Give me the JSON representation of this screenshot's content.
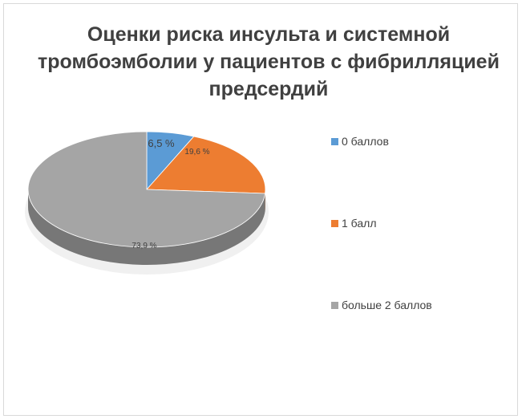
{
  "chart_data": {
    "type": "pie",
    "style": "3d",
    "title": "Оценки риска инсульта и системной тромбоэмболии у пациентов с фибрилляцией предсердий",
    "slices": [
      {
        "name": "0 баллов",
        "value": 6.5,
        "label": "6,5 %",
        "color": "#5b9bd5"
      },
      {
        "name": "1 балл",
        "value": 19.6,
        "label": "19,6 %",
        "color": "#ed7d31"
      },
      {
        "name": "больше 2 баллов",
        "value": 73.9,
        "label": "73,9 %",
        "color": "#a5a5a5"
      }
    ],
    "legend_position": "right"
  }
}
